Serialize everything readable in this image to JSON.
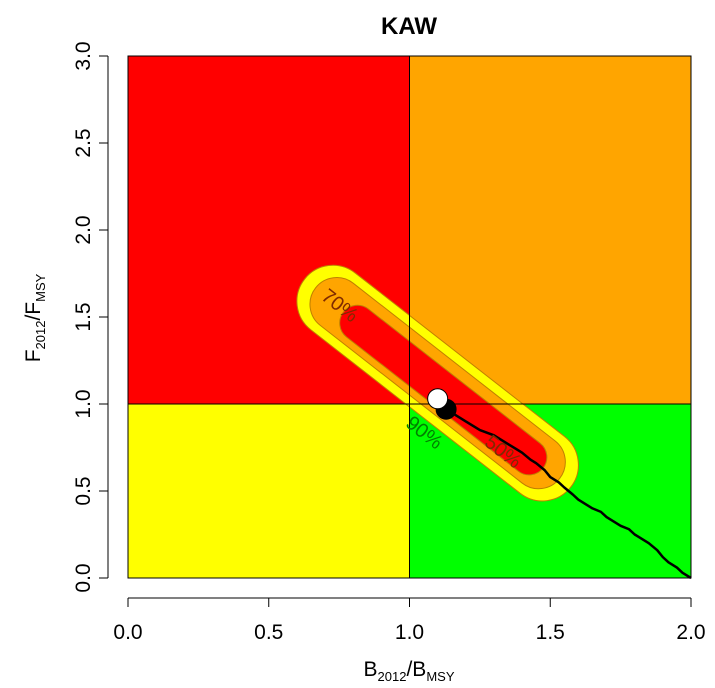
{
  "chart_data": {
    "type": "kobe_plot",
    "title": "KAW",
    "xlabel": {
      "main": "B",
      "sub1": "2012",
      "sep": "/",
      "main2": "B",
      "sub2": "MSY"
    },
    "ylabel": {
      "main": "F",
      "sub1": "2012",
      "sep": "/",
      "main2": "F",
      "sub2": "MSY"
    },
    "xlim": [
      0,
      2
    ],
    "ylim": [
      0,
      3
    ],
    "x_ticks": [
      "0.0",
      "0.5",
      "1.0",
      "1.5",
      "2.0"
    ],
    "y_ticks": [
      "0.0",
      "0.5",
      "1.0",
      "1.5",
      "2.0",
      "2.5",
      "3.0"
    ],
    "reference_lines": {
      "x": 1.0,
      "y": 1.0
    },
    "quadrants": [
      {
        "name": "overfished-overfishing",
        "x": [
          0,
          1
        ],
        "y": [
          1,
          3
        ],
        "color": "#ff0000"
      },
      {
        "name": "overfishing-only",
        "x": [
          1,
          2
        ],
        "y": [
          1,
          3
        ],
        "color": "#ffa500"
      },
      {
        "name": "overfished-only",
        "x": [
          0,
          1
        ],
        "y": [
          0,
          1
        ],
        "color": "#ffff00"
      },
      {
        "name": "healthy",
        "x": [
          1,
          2
        ],
        "y": [
          0,
          1
        ],
        "color": "#00ff00"
      }
    ],
    "contours": [
      {
        "label": "90%",
        "color": "#ffff00",
        "label_pos": [
          1.05,
          0.83
        ],
        "label_color": "#008000",
        "center": [
          1.1,
          1.12
        ],
        "half_length": 0.6,
        "half_width": 0.128,
        "angle_deg": -38
      },
      {
        "label": "70%",
        "color": "#ffa500",
        "label_pos": [
          0.75,
          1.56
        ],
        "label_color": "#7f2a00",
        "center": [
          1.1,
          1.12
        ],
        "half_length": 0.55,
        "half_width": 0.095,
        "angle_deg": -38
      },
      {
        "label": "50%",
        "color": "#ff0000",
        "label_pos": [
          1.33,
          0.72
        ],
        "label_color": "#7f2a00",
        "center": [
          1.12,
          1.08
        ],
        "half_length": 0.45,
        "half_width": 0.063,
        "angle_deg": -38
      }
    ],
    "trajectory": {
      "color": "#000000",
      "x": [
        1.12,
        1.15,
        1.2,
        1.25,
        1.3,
        1.35,
        1.38,
        1.4,
        1.43,
        1.45,
        1.48,
        1.5,
        1.53,
        1.55,
        1.58,
        1.6,
        1.63,
        1.65,
        1.68,
        1.7,
        1.72,
        1.75,
        1.78,
        1.8,
        1.83,
        1.85,
        1.88,
        1.9,
        1.92,
        1.95,
        1.97,
        2.0
      ],
      "y": [
        0.98,
        0.95,
        0.9,
        0.85,
        0.82,
        0.77,
        0.74,
        0.72,
        0.68,
        0.66,
        0.62,
        0.58,
        0.55,
        0.52,
        0.48,
        0.45,
        0.42,
        0.4,
        0.38,
        0.35,
        0.33,
        0.3,
        0.28,
        0.25,
        0.22,
        0.2,
        0.16,
        0.12,
        0.09,
        0.06,
        0.03,
        0.0
      ]
    },
    "points": [
      {
        "name": "current-status-dark",
        "x": 1.13,
        "y": 0.97,
        "fill": "#000000"
      },
      {
        "name": "current-status-white",
        "x": 1.1,
        "y": 1.03,
        "fill": "#ffffff"
      }
    ]
  }
}
